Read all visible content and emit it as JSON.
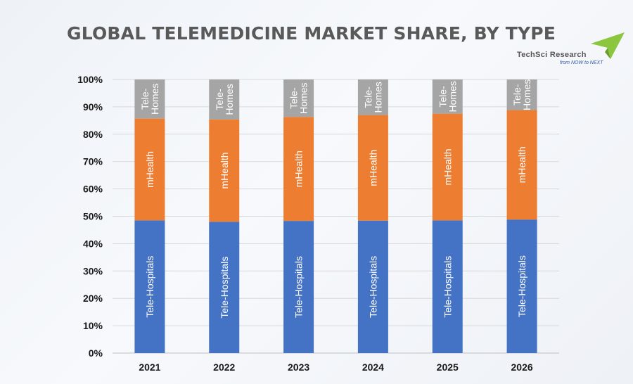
{
  "title": "GLOBAL TELEMEDICINE MARKET SHARE, BY TYPE",
  "logo": {
    "name": "TechSci Research",
    "tagline": "from NOW to NEXT",
    "icon": "green-arrow-chevron-icon",
    "color": "#8cc63f"
  },
  "colors": {
    "tele_hospitals": "#4472c4",
    "mhealth": "#ed7d31",
    "tele_homes": "#a5a5a5",
    "grid": "#d9d9d9"
  },
  "chart_data": {
    "type": "bar",
    "stacked": true,
    "percent": true,
    "categories": [
      "2021",
      "2022",
      "2023",
      "2024",
      "2025",
      "2026"
    ],
    "series": [
      {
        "name": "Tele-Hospitals",
        "values": [
          48.5,
          48,
          48.3,
          48.4,
          48.5,
          48.8
        ]
      },
      {
        "name": "mHealth",
        "values": [
          37.2,
          37.4,
          38,
          38.6,
          39,
          40
        ]
      },
      {
        "name": "Tele-Homes",
        "values": [
          14.3,
          14.6,
          13.7,
          13,
          12.5,
          11.2
        ]
      }
    ],
    "segment_labels": [
      [
        "Tele-Hospitals",
        "Tele-Hospitals",
        "Tele-Hospitals",
        "Tele-Hospitals",
        "Tele-Hospitals",
        "Tele-Hospitals"
      ],
      [
        "mHealth",
        "mHealth",
        "mHealth",
        "mHealth",
        "mHealth",
        "mHealth"
      ],
      [
        "Tele-\nHomes",
        "Tele-\nHomes",
        "Tele-\nHomes",
        "Tele-\nHomes",
        "Tele-\nHomes",
        "Tele-\nHomes"
      ]
    ],
    "yticks": [
      "0%",
      "10%",
      "20%",
      "30%",
      "40%",
      "50%",
      "60%",
      "70%",
      "80%",
      "90%",
      "100%"
    ],
    "ylim": [
      0,
      100
    ],
    "xlabel": "",
    "ylabel": "",
    "grid": true,
    "legend": "none"
  }
}
